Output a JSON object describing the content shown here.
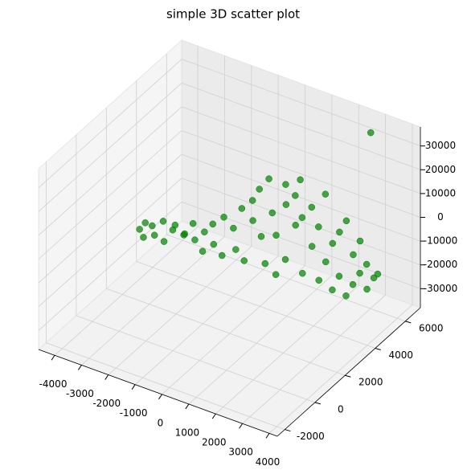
{
  "chart_data": {
    "type": "scatter3d",
    "title": "simple 3D scatter plot",
    "color": "#008000",
    "x": [
      -2800,
      -2700,
      -2600,
      -2500,
      -2300,
      -2200,
      -2000,
      -1900,
      -1700,
      -1600,
      -1400,
      -1300,
      -1200,
      -1000,
      -900,
      -800,
      -600,
      -500,
      -400,
      -200,
      0,
      0,
      200,
      300,
      400,
      500,
      600,
      700,
      800,
      900,
      1000,
      1100,
      1200,
      1300,
      1400,
      1500,
      1600,
      1700,
      1800,
      1900,
      2000,
      2100,
      2200,
      2300,
      2400,
      2500,
      2600,
      2700,
      2800,
      2900,
      3000,
      3100,
      3200,
      3300,
      3400,
      3500,
      3600,
      3700,
      3800,
      4000,
      2730
    ],
    "y": [
      1000,
      1200,
      900,
      1300,
      1100,
      1500,
      1200,
      1600,
      1400,
      1800,
      1500,
      2000,
      1700,
      2100,
      1800,
      2300,
      2000,
      2500,
      2200,
      2600,
      2400,
      2800,
      2600,
      3000,
      2800,
      3200,
      2900,
      3100,
      3400,
      3000,
      3300,
      3100,
      3600,
      3400,
      3200,
      3700,
      3500,
      3800,
      3600,
      3300,
      3900,
      3700,
      4000,
      3800,
      4100,
      3900,
      4200,
      4000,
      4300,
      4100,
      4400,
      4200,
      4500,
      4300,
      4600,
      4400,
      4700,
      4500,
      4800,
      4700,
      6500
    ],
    "z": [
      0,
      2000,
      -2000,
      1000,
      -1000,
      3000,
      -3000,
      0,
      4000,
      -2000,
      1000,
      -4000,
      5000,
      0,
      -6000,
      3000,
      -3000,
      6000,
      -8000,
      2000,
      -5000,
      10000,
      -10000,
      5000,
      15000,
      -2000,
      20000,
      -12000,
      8000,
      25000,
      0,
      -15000,
      12000,
      22000,
      -8000,
      4000,
      18000,
      -16000,
      9000,
      27000,
      -4000,
      14000,
      -18000,
      6000,
      -10000,
      20000,
      -2000,
      -20000,
      3000,
      -14000,
      8000,
      -22000,
      -6000,
      -17000,
      0,
      -12000,
      -20000,
      -8000,
      -15000,
      -12000,
      32000
    ],
    "xlim": [
      -4600,
      4300
    ],
    "ylim": [
      -2500,
      7000
    ],
    "zlim": [
      -38000,
      38000
    ],
    "xticks": [
      -4000,
      -3000,
      -2000,
      -1000,
      0,
      1000,
      2000,
      3000,
      4000
    ],
    "yticks": [
      -2000,
      0,
      2000,
      4000,
      6000
    ],
    "zticks": [
      -30000,
      -20000,
      -10000,
      0,
      10000,
      20000,
      30000
    ],
    "grid": true
  }
}
